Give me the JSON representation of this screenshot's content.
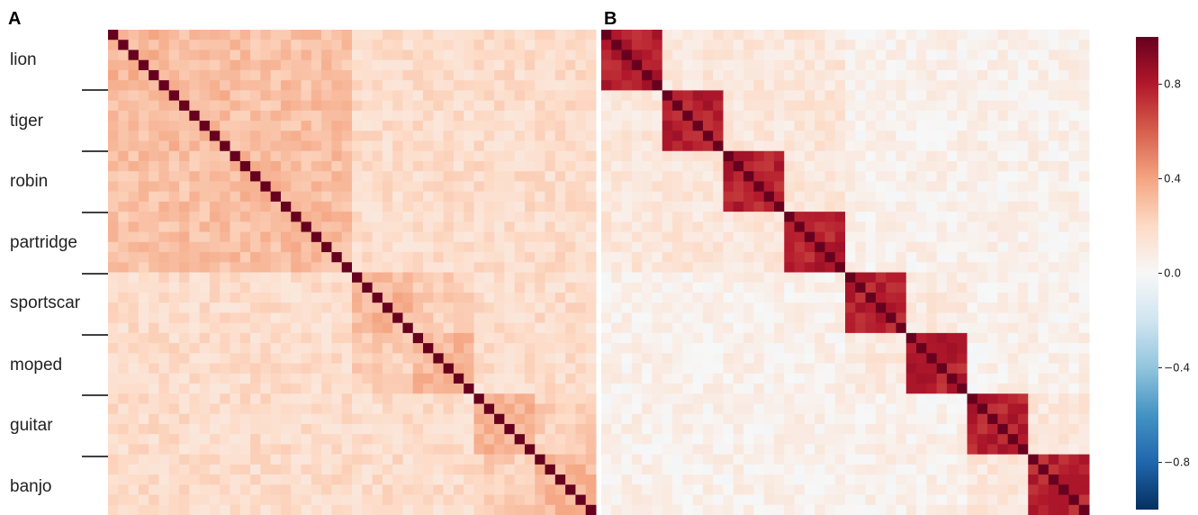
{
  "panels": [
    {
      "letter": "A",
      "block_size": 6,
      "within_similarity": 0.33,
      "between_animal_similarity": 0.3,
      "between_vehicle_similarity": 0.24,
      "between_instrument_similarity": 0.24,
      "cross_domain_similarity": 0.18,
      "diagonal": 1.0
    },
    {
      "letter": "B",
      "block_size": 6,
      "within_similarity": 0.78,
      "between_animal_similarity": 0.12,
      "between_vehicle_similarity": 0.1,
      "between_instrument_similarity": 0.12,
      "cross_domain_similarity": 0.05,
      "diagonal": 1.0
    }
  ],
  "categories": [
    "lion",
    "tiger",
    "robin",
    "partridge",
    "sportscar",
    "moped",
    "guitar",
    "banjo"
  ],
  "colorbar": {
    "ticks": [
      "0.8",
      "0.4",
      "0.0",
      "−0.4",
      "−0.8"
    ],
    "tick_values": [
      0.8,
      0.4,
      0.0,
      -0.4,
      -0.8
    ],
    "min": -1.0,
    "max": 1.0,
    "colormap": "RdBu_r"
  },
  "chart_data": {
    "type": "heatmap",
    "description_values": "two 48x48 item-by-item correlation matrices, rows/columns grouped into 8 categories of 6 items",
    "categories": [
      "lion",
      "tiger",
      "robin",
      "partridge",
      "sportscar",
      "moped",
      "guitar",
      "banjo"
    ],
    "items_per_category": 6,
    "value_range": [
      -1.0,
      1.0
    ]
  }
}
